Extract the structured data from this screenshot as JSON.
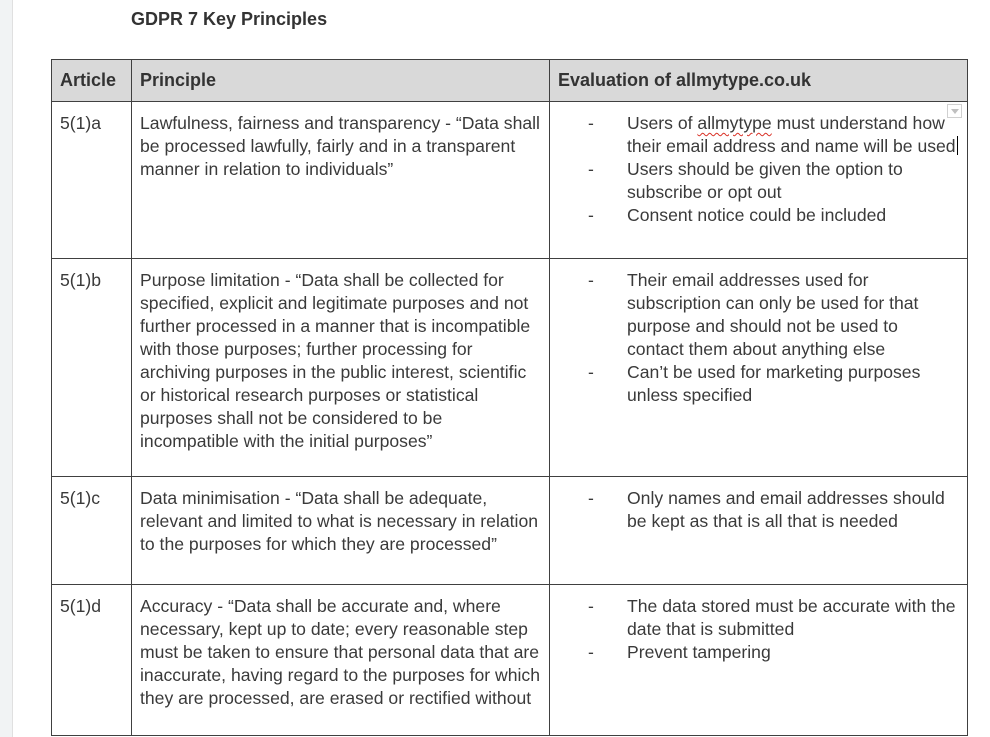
{
  "document": {
    "title": "GDPR 7 Key Principles"
  },
  "table": {
    "headers": {
      "article": "Article",
      "principle": "Principle",
      "evaluation": "Evaluation of allmytype.co.uk"
    },
    "rows": [
      {
        "article": "5(1)a",
        "principle": "Lawfulness, fairness and transparency - “Data shall be processed lawfully, fairly and in a transparent manner in relation to individuals”",
        "evaluation": [
          {
            "before": "Users of ",
            "misspelled": "allmytype",
            "after": " must understand how their email address and name will be used"
          },
          "Users should be given the option to subscribe or opt out",
          "Consent notice could be included"
        ]
      },
      {
        "article": "5(1)b",
        "principle": "Purpose limitation - “Data shall be collected for specified, explicit and legitimate purposes and not further processed in a manner that is incompatible with those purposes; further processing for archiving purposes in the public interest, scientific or historical research purposes or statistical purposes shall not be considered to be incompatible with the initial purposes”",
        "evaluation": [
          "Their email addresses used for subscription can only be used for that purpose and should not be used to contact them about anything else",
          "Can’t be used for marketing purposes unless specified"
        ]
      },
      {
        "article": "5(1)c",
        "principle": "Data minimisation - “Data shall be adequate, relevant and limited to what is necessary in relation to the purposes for which they are processed”",
        "evaluation": [
          "Only names and email addresses should be kept as that is all that is needed"
        ]
      },
      {
        "article": "5(1)d",
        "principle": "Accuracy - “Data shall be accurate and, where necessary, kept up to date; every reasonable step must be taken to ensure that personal data that are inaccurate, having regard to the purposes for which they are processed, are erased or rectified without",
        "evaluation": [
          "The data stored must be accurate with the date that is submitted",
          "Prevent tampering"
        ]
      }
    ]
  }
}
